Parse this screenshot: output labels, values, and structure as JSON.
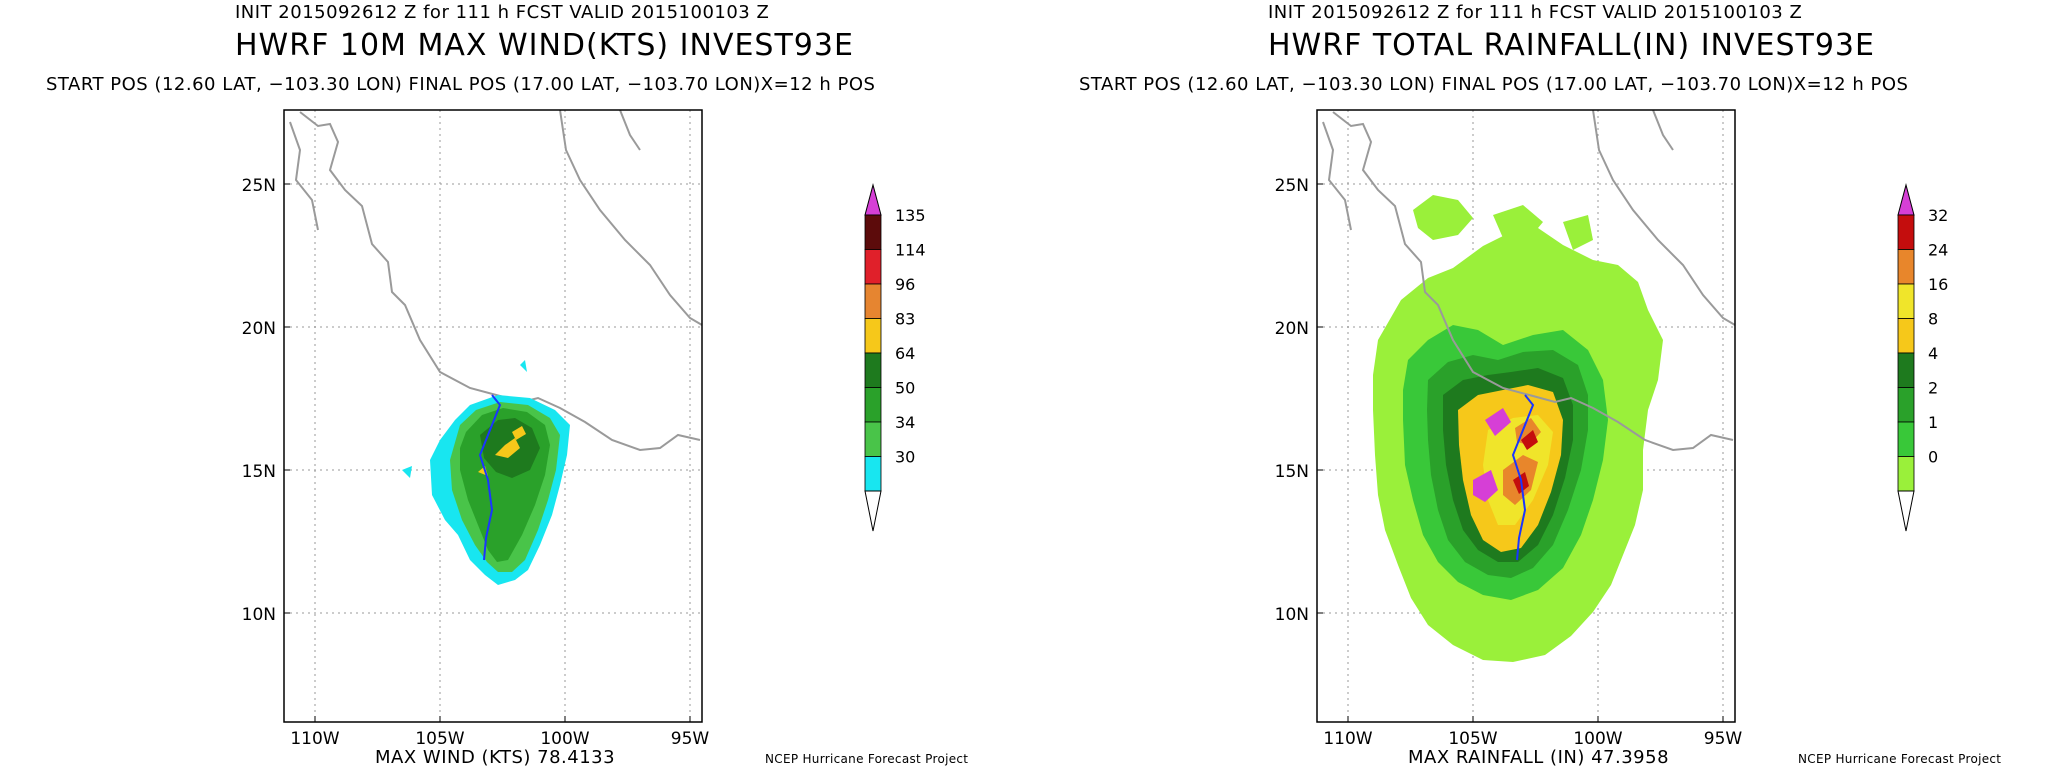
{
  "panels": [
    {
      "init_line": "INIT 2015092612 Z for 111 h FCST VALID 2015100103 Z",
      "title": "HWRF 10M MAX WIND(KTS) INVEST93E",
      "start_pos": "START POS (12.60 LAT, −103.30 LON)  FINAL POS (17.00 LAT, −103.70 LON)X=12 h POS",
      "footer_max": "MAX WIND (KTS) 78.4133",
      "footer_credit": "NCEP Hurricane Forecast Project",
      "lat_labels": [
        "25N",
        "20N",
        "15N",
        "10N"
      ],
      "lon_labels": [
        "110W",
        "105W",
        "100W",
        "95W"
      ],
      "colorbar_labels": [
        "135",
        "114",
        "96",
        "83",
        "64",
        "50",
        "34",
        "30"
      ],
      "colorbar_colors": [
        "#5c0b0b",
        "#e0202a",
        "#e68530",
        "#f6c81a",
        "#1e7a1e",
        "#2aa12a",
        "#49c449",
        "#18e6f0"
      ],
      "colorbar_top_color": "#d63fd6",
      "colorbar_bottom_color": "#ffffff"
    },
    {
      "init_line": "INIT 2015092612 Z for 111 h FCST VALID 2015100103 Z",
      "title": "HWRF TOTAL RAINFALL(IN) INVEST93E",
      "start_pos": "START POS (12.60 LAT, −103.30 LON)  FINAL POS (17.00 LAT, −103.70 LON)X=12 h POS",
      "footer_max": "MAX RAINFALL (IN) 47.3958",
      "footer_credit": "NCEP Hurricane Forecast Project",
      "lat_labels": [
        "25N",
        "20N",
        "15N",
        "10N"
      ],
      "lon_labels": [
        "110W",
        "105W",
        "100W",
        "95W"
      ],
      "colorbar_labels": [
        "32",
        "24",
        "16",
        "8",
        "4",
        "2",
        "1",
        "0"
      ],
      "colorbar_colors": [
        "#c40d0d",
        "#e8862b",
        "#f0e52a",
        "#f6c81a",
        "#1e7a1e",
        "#2aa12a",
        "#39c839",
        "#9af03a"
      ],
      "colorbar_top_color": "#d63fd6",
      "colorbar_bottom_color": "#ffffff"
    }
  ]
}
